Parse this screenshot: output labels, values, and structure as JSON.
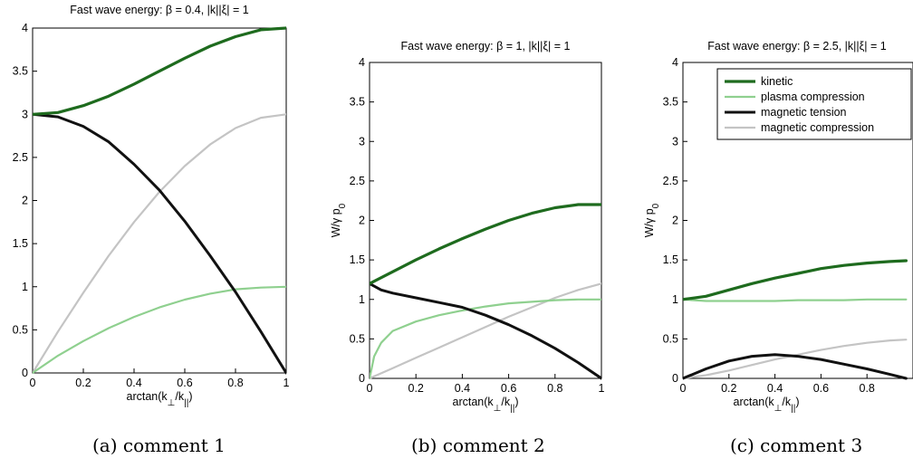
{
  "chart_data": [
    {
      "type": "line",
      "title": "Fast wave energy: β = 0.4,  |k||ξ| = 1",
      "xlabel": "arctan(k⊥/k||)",
      "ylabel": "",
      "xlim": [
        0,
        1
      ],
      "ylim": [
        0,
        4
      ],
      "xticks": [
        "0",
        "0.2",
        "0.4",
        "0.6",
        "0.8",
        "1"
      ],
      "yticks": [
        "0",
        "0.5",
        "1",
        "1.5",
        "2",
        "2.5",
        "3",
        "3.5",
        "4"
      ],
      "caption": "(a)  comment 1",
      "series": [
        {
          "key": "kinetic",
          "color": "#1e6b1e",
          "width": 3.2,
          "x": [
            0,
            0.1,
            0.2,
            0.3,
            0.4,
            0.5,
            0.6,
            0.7,
            0.8,
            0.9,
            1.0
          ],
          "y": [
            3.0,
            3.02,
            3.1,
            3.21,
            3.35,
            3.5,
            3.65,
            3.79,
            3.9,
            3.98,
            4.0
          ]
        },
        {
          "key": "plasma",
          "color": "#8fd08f",
          "width": 2.2,
          "x": [
            0,
            0.1,
            0.2,
            0.3,
            0.4,
            0.5,
            0.6,
            0.7,
            0.8,
            0.9,
            1.0
          ],
          "y": [
            0.0,
            0.2,
            0.37,
            0.52,
            0.65,
            0.76,
            0.85,
            0.92,
            0.97,
            0.99,
            1.0
          ]
        },
        {
          "key": "tension",
          "color": "#111111",
          "width": 3.0,
          "x": [
            0,
            0.1,
            0.2,
            0.3,
            0.4,
            0.5,
            0.6,
            0.7,
            0.8,
            0.9,
            1.0
          ],
          "y": [
            3.0,
            2.97,
            2.86,
            2.68,
            2.42,
            2.12,
            1.76,
            1.36,
            0.94,
            0.48,
            0.0
          ]
        },
        {
          "key": "magcomp",
          "color": "#c4c4c4",
          "width": 2.2,
          "x": [
            0,
            0.1,
            0.2,
            0.3,
            0.4,
            0.5,
            0.6,
            0.7,
            0.8,
            0.9,
            1.0
          ],
          "y": [
            0.0,
            0.48,
            0.93,
            1.36,
            1.75,
            2.1,
            2.4,
            2.65,
            2.84,
            2.96,
            3.0
          ]
        }
      ]
    },
    {
      "type": "line",
      "title": "Fast wave energy: β = 1,  |k||ξ| = 1",
      "xlabel": "arctan(k⊥/k||)",
      "ylabel": "W/γ p0",
      "xlim": [
        0,
        1
      ],
      "ylim": [
        0,
        4
      ],
      "xticks": [
        "0",
        "0.2",
        "0.4",
        "0.6",
        "0.8",
        "1"
      ],
      "yticks": [
        "0",
        "0.5",
        "1",
        "1.5",
        "2",
        "2.5",
        "3",
        "3.5",
        "4"
      ],
      "caption": "(b)  comment 2",
      "series": [
        {
          "key": "kinetic",
          "color": "#1e6b1e",
          "width": 3.2,
          "x": [
            0,
            0.1,
            0.2,
            0.3,
            0.4,
            0.5,
            0.6,
            0.7,
            0.8,
            0.9,
            1.0
          ],
          "y": [
            1.2,
            1.35,
            1.5,
            1.64,
            1.77,
            1.89,
            2.0,
            2.09,
            2.16,
            2.2,
            2.2
          ]
        },
        {
          "key": "plasma",
          "color": "#8fd08f",
          "width": 2.2,
          "x": [
            0,
            0.02,
            0.05,
            0.1,
            0.2,
            0.3,
            0.4,
            0.5,
            0.6,
            0.7,
            0.8,
            0.9,
            1.0
          ],
          "y": [
            0.0,
            0.28,
            0.45,
            0.6,
            0.72,
            0.8,
            0.86,
            0.91,
            0.95,
            0.97,
            0.99,
            1.0,
            1.0
          ]
        },
        {
          "key": "tension",
          "color": "#111111",
          "width": 3.0,
          "x": [
            0,
            0.05,
            0.1,
            0.2,
            0.3,
            0.4,
            0.5,
            0.6,
            0.7,
            0.8,
            0.9,
            1.0
          ],
          "y": [
            1.2,
            1.12,
            1.08,
            1.02,
            0.96,
            0.9,
            0.8,
            0.68,
            0.54,
            0.38,
            0.2,
            0.0
          ]
        },
        {
          "key": "magcomp",
          "color": "#c4c4c4",
          "width": 2.2,
          "x": [
            0,
            0.1,
            0.2,
            0.3,
            0.4,
            0.5,
            0.6,
            0.7,
            0.8,
            0.9,
            1.0
          ],
          "y": [
            0.0,
            0.13,
            0.26,
            0.39,
            0.52,
            0.65,
            0.78,
            0.9,
            1.02,
            1.12,
            1.2
          ]
        }
      ]
    },
    {
      "type": "line",
      "title": "Fast wave energy: β = 2.5,  |k||ξ| = 1",
      "xlabel": "arctan(k⊥/k||)",
      "ylabel": "W/γ p0",
      "xlim": [
        0,
        1
      ],
      "ylim": [
        0,
        4
      ],
      "xticks": [
        "0",
        "0.2",
        "0.4",
        "0.6",
        "0.8"
      ],
      "yticks": [
        "0",
        "0.5",
        "1",
        "1.5",
        "2",
        "2.5",
        "3",
        "3.5",
        "4"
      ],
      "caption": "(c)  comment 3",
      "legend": {
        "position": "top-right",
        "entries": [
          {
            "key": "kinetic",
            "label": "kinetic"
          },
          {
            "key": "plasma",
            "label": "plasma compression"
          },
          {
            "key": "tension",
            "label": "magnetic tension"
          },
          {
            "key": "magcomp",
            "label": "magnetic compression"
          }
        ]
      },
      "series": [
        {
          "key": "kinetic",
          "color": "#1e6b1e",
          "width": 3.2,
          "x": [
            0,
            0.1,
            0.2,
            0.3,
            0.4,
            0.5,
            0.6,
            0.7,
            0.8,
            0.9,
            0.97
          ],
          "y": [
            1.0,
            1.04,
            1.12,
            1.2,
            1.27,
            1.33,
            1.39,
            1.43,
            1.46,
            1.48,
            1.49
          ]
        },
        {
          "key": "plasma",
          "color": "#8fd08f",
          "width": 2.2,
          "x": [
            0,
            0.1,
            0.2,
            0.3,
            0.4,
            0.5,
            0.6,
            0.7,
            0.8,
            0.9,
            0.97
          ],
          "y": [
            1.0,
            0.98,
            0.98,
            0.98,
            0.98,
            0.99,
            0.99,
            0.99,
            1.0,
            1.0,
            1.0
          ]
        },
        {
          "key": "tension",
          "color": "#111111",
          "width": 3.0,
          "x": [
            0,
            0.1,
            0.2,
            0.3,
            0.4,
            0.5,
            0.6,
            0.7,
            0.8,
            0.9,
            0.97
          ],
          "y": [
            0.0,
            0.12,
            0.22,
            0.28,
            0.3,
            0.28,
            0.24,
            0.18,
            0.12,
            0.05,
            0.0
          ]
        },
        {
          "key": "magcomp",
          "color": "#c4c4c4",
          "width": 2.2,
          "x": [
            0,
            0.1,
            0.2,
            0.3,
            0.4,
            0.5,
            0.6,
            0.7,
            0.8,
            0.9,
            0.97
          ],
          "y": [
            0.0,
            0.04,
            0.1,
            0.17,
            0.24,
            0.3,
            0.36,
            0.41,
            0.45,
            0.48,
            0.49
          ]
        }
      ]
    }
  ]
}
